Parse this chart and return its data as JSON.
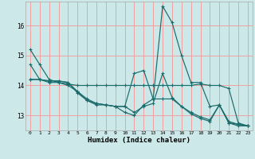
{
  "xlabel": "Humidex (Indice chaleur)",
  "bg_color": "#cce8e8",
  "grid_color": "#f0a0a0",
  "line_color": "#1a6b6b",
  "xlim": [
    -0.5,
    23.5
  ],
  "ylim": [
    12.5,
    16.8
  ],
  "yticks": [
    13,
    14,
    15,
    16
  ],
  "xticks": [
    0,
    1,
    2,
    3,
    4,
    5,
    6,
    7,
    8,
    9,
    10,
    11,
    12,
    13,
    14,
    15,
    16,
    17,
    18,
    19,
    20,
    21,
    22,
    23
  ],
  "series": [
    [
      15.2,
      14.7,
      14.2,
      14.1,
      14.0,
      13.8,
      13.5,
      13.4,
      13.35,
      13.3,
      13.1,
      13.0,
      13.35,
      13.55,
      16.65,
      16.1,
      15.0,
      14.1,
      14.1,
      13.3,
      13.35,
      12.8,
      12.7,
      12.65
    ],
    [
      14.2,
      14.2,
      14.1,
      14.1,
      14.05,
      14.0,
      14.0,
      14.0,
      14.0,
      14.0,
      14.0,
      14.0,
      14.0,
      14.0,
      14.0,
      14.0,
      14.0,
      14.0,
      14.05,
      14.0,
      14.0,
      13.9,
      12.75,
      12.65
    ],
    [
      14.2,
      14.2,
      14.15,
      14.15,
      14.1,
      13.8,
      13.55,
      13.4,
      13.35,
      13.3,
      13.3,
      13.1,
      13.3,
      13.4,
      14.4,
      13.6,
      13.3,
      13.1,
      12.95,
      12.85,
      13.35,
      12.75,
      12.7,
      12.65
    ],
    [
      14.7,
      14.2,
      14.15,
      14.15,
      14.1,
      13.75,
      13.5,
      13.35,
      13.35,
      13.3,
      13.3,
      14.4,
      14.5,
      13.55,
      13.55,
      13.55,
      13.3,
      13.05,
      12.9,
      12.8,
      13.35,
      12.75,
      12.65,
      12.65
    ]
  ]
}
